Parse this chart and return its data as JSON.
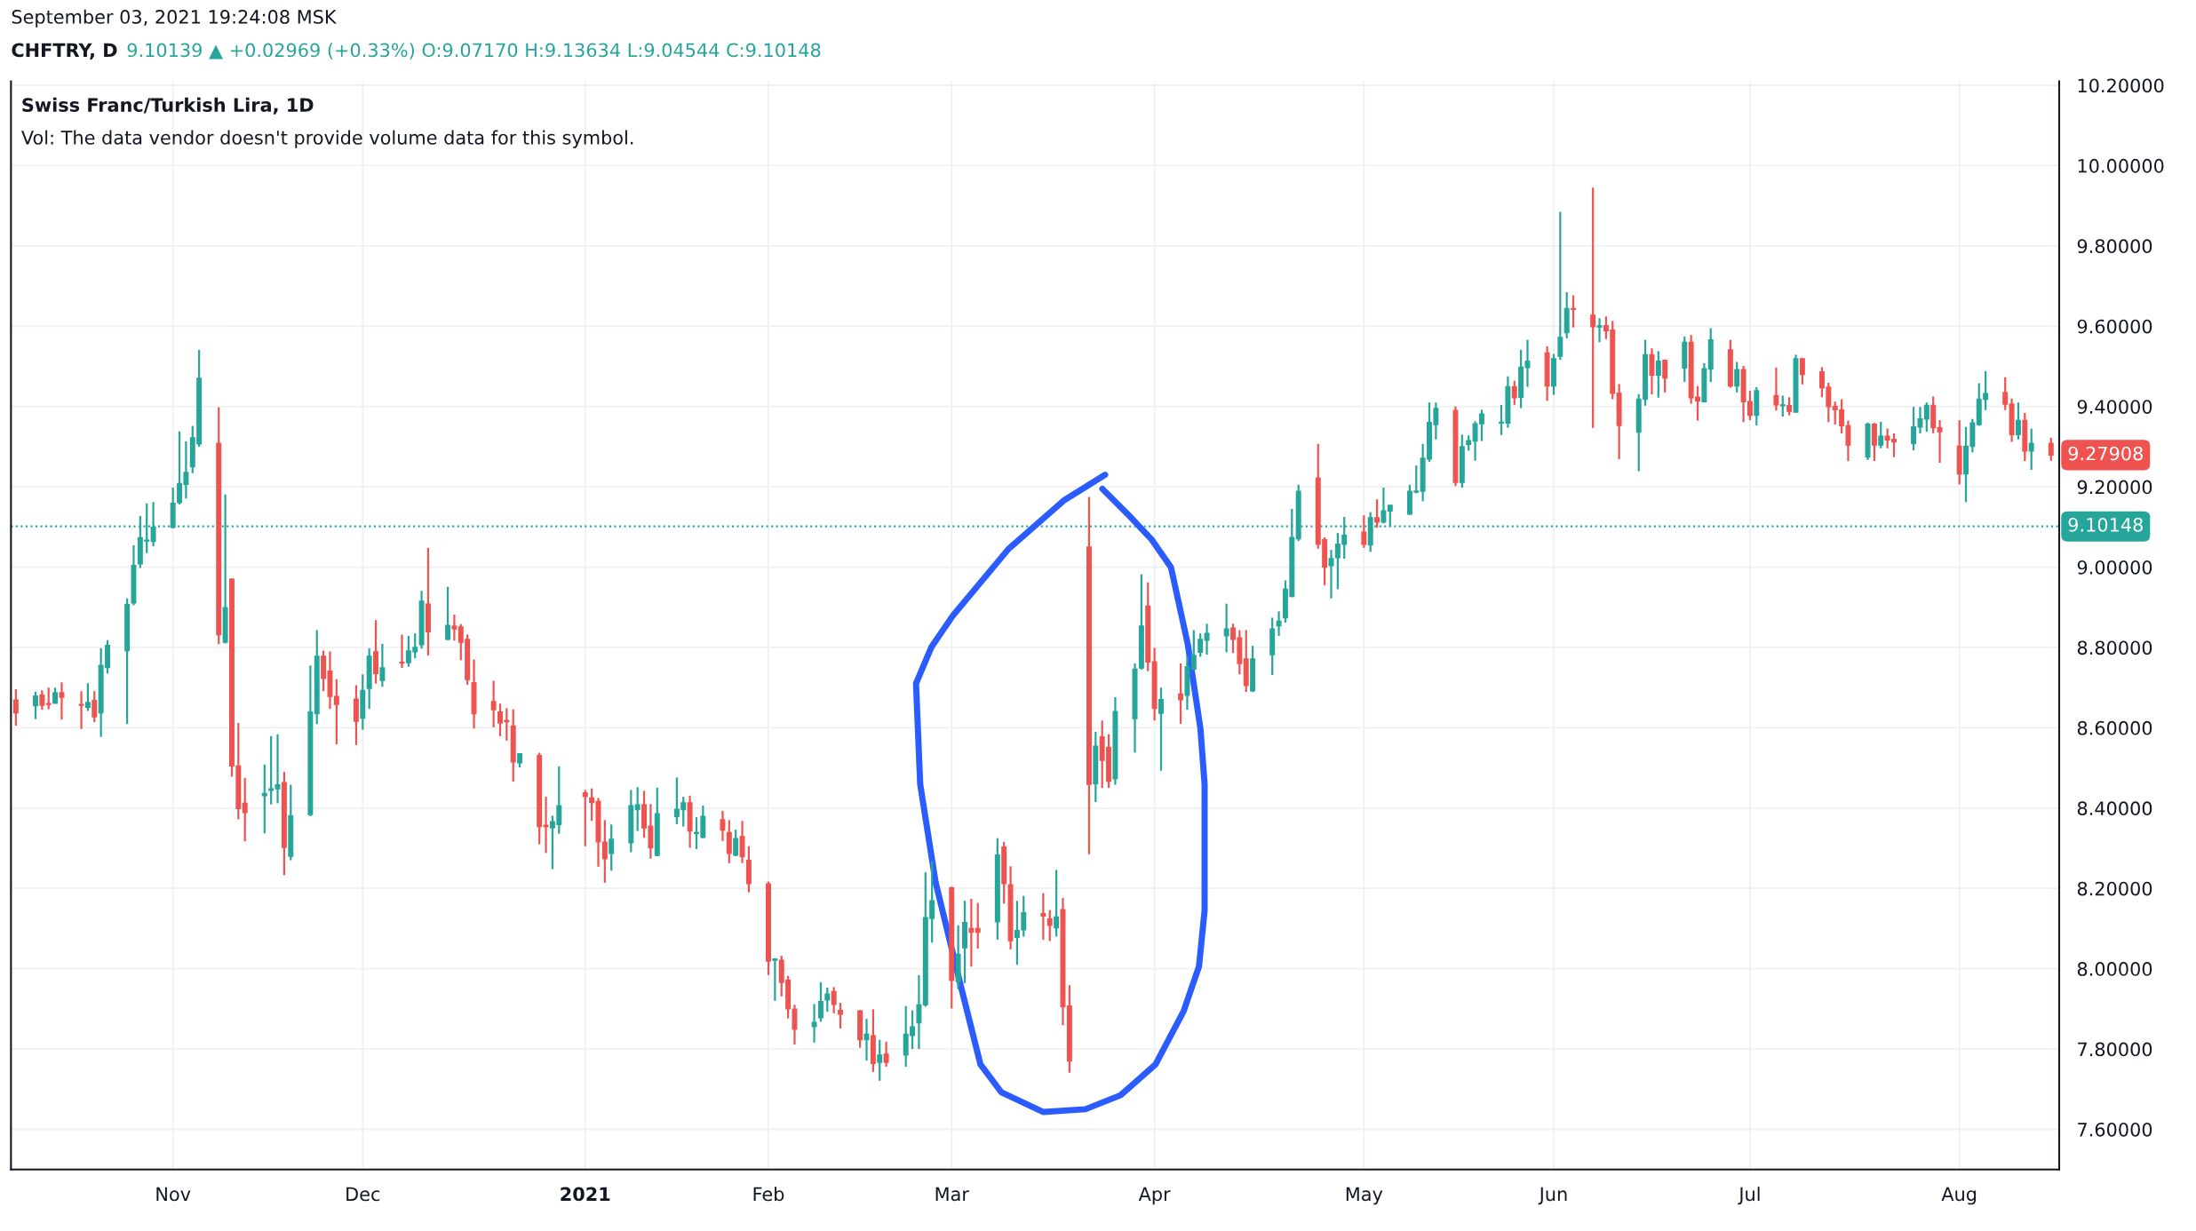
{
  "chart_data": {
    "type": "candlestick",
    "title": "Swiss Franc/Turkish Lira, 1D",
    "subtitle": "Vol: The data vendor doesn't provide volume data for this symbol.",
    "annotations": [
      "September 03, 2021 19:24:08 MSK",
      "CHFTRY, D",
      "9.10139 ▲ +0.02969 (+0.33%) O:9.07170 H:9.13634 L:9.04544 C:9.10148",
      {
        "text": "9.27908",
        "x": "2021-08-16",
        "y": 9.27908
      }
    ],
    "colors": [
      "#ef5350",
      "#26a69a",
      "#ef5350",
      "#ef5350",
      "#26a69a",
      "#ef5350",
      "#ef5350",
      "#26a69a",
      "#ef5350",
      "#26a69a",
      "#26a69a",
      "#26a69a",
      "#26a69a",
      "#26a69a",
      "#26a69a",
      "#26a69a",
      "#26a69a",
      "#26a69a",
      "#26a69a",
      "#26a69a",
      "#26a69a",
      "#ef5350",
      "#26a69a",
      "#ef5350",
      "#ef5350",
      "#ef5350",
      "#26a69a",
      "#26a69a",
      "#26a69a",
      "#ef5350",
      "#26a69a",
      "#26a69a",
      "#26a69a",
      "#ef5350",
      "#ef5350",
      "#ef5350",
      "#ef5350",
      "#26a69a",
      "#26a69a",
      "#ef5350",
      "#26a69a",
      "#ef5350",
      "#26a69a",
      "#26a69a",
      "#26a69a",
      "#ef5350",
      "#26a69a",
      "#ef5350",
      "#ef5350",
      "#ef5350",
      "#ef5350",
      "#ef5350",
      "#ef5350",
      "#ef5350",
      "#ef5350",
      "#26a69a",
      "#ef5350",
      "#ef5350",
      "#26a69a",
      "#26a69a",
      "#ef5350",
      "#ef5350",
      "#ef5350",
      "#ef5350",
      "#26a69a",
      "#26a69a",
      "#26a69a",
      "#ef5350",
      "#ef5350",
      "#26a69a",
      "#26a69a",
      "#26a69a",
      "#ef5350",
      "#26a69a",
      "#26a69a",
      "#ef5350",
      "#ef5350",
      "#26a69a",
      "#ef5350",
      "#ef5350",
      "#ef5350",
      "#26a69a",
      "#ef5350",
      "#ef5350",
      "#ef5350",
      "#26a69a",
      "#26a69a",
      "#26a69a",
      "#ef5350",
      "#ef5350",
      "#ef5350",
      "#26a69a",
      "#ef5350",
      "#26a69a",
      "#ef5350",
      "#26a69a",
      "#26a69a",
      "#26a69a",
      "#26a69a",
      "#26a69a",
      "#ef5350",
      "#26a69a",
      "#26a69a",
      "#ef5350",
      "#ef5350",
      "#26a69a",
      "#ef5350",
      "#ef5350",
      "#26a69a",
      "#26a69a",
      "#ef5350",
      "#ef5350",
      "#26a69a",
      "#ef5350",
      "#ef5350",
      "#ef5350",
      "#26a69a",
      "#ef5350",
      "#ef5350",
      "#26a69a",
      "#26a69a",
      "#26a69a",
      "#ef5350",
      "#ef5350",
      "#26a69a",
      "#ef5350",
      "#26a69a",
      "#26a69a",
      "#26a69a",
      "#26a69a",
      "#26a69a",
      "#ef5350",
      "#ef5350",
      "#ef5350",
      "#26a69a",
      "#26a69a",
      "#26a69a",
      "#26a69a",
      "#26a69a",
      "#26a69a",
      "#ef5350",
      "#ef5350",
      "#26a69a",
      "#26a69a",
      "#26a69a",
      "#ef5350",
      "#26a69a",
      "#ef5350",
      "#26a69a",
      "#26a69a",
      "#26a69a",
      "#26a69a",
      "#26a69a",
      "#26a69a",
      "#26a69a",
      "#ef5350",
      "#26a69a",
      "#26a69a",
      "#26a69a",
      "#26a69a",
      "#26a69a",
      "#26a69a",
      "#ef5350",
      "#26a69a",
      "#26a69a",
      "#ef5350",
      "#26a69a",
      "#26a69a",
      "#26a69a",
      "#ef5350",
      "#ef5350",
      "#26a69a",
      "#ef5350",
      "#ef5350",
      "#ef5350",
      "#26a69a",
      "#26a69a",
      "#ef5350",
      "#26a69a",
      "#ef5350",
      "#26a69a",
      "#ef5350",
      "#ef5350",
      "#26a69a",
      "#26a69a",
      "#ef5350",
      "#26a69a",
      "#ef5350",
      "#ef5350",
      "#26a69a",
      "#ef5350",
      "#26a69a",
      "#ef5350",
      "#26a69a",
      "#ef5350",
      "#ef5350",
      "#ef5350",
      "#ef5350",
      "#ef5350",
      "#ef5350",
      "#26a69a",
      "#ef5350",
      "#26a69a",
      "#ef5350",
      "#ef5350",
      "#26a69a",
      "#26a69a",
      "#26a69a",
      "#ef5350",
      "#ef5350",
      "#ef5350",
      "#26a69a",
      "#26a69a",
      "#26a69a",
      "#26a69a",
      "#ef5350",
      "#ef5350",
      "#26a69a",
      "#ef5350",
      "#26a69a",
      "#ef5350"
    ],
    "x": [
      "2020-10-09",
      "2020-10-12",
      "2020-10-13",
      "2020-10-14",
      "2020-10-15",
      "2020-10-16",
      "2020-10-19",
      "2020-10-20",
      "2020-10-21",
      "2020-10-22",
      "2020-10-23",
      "2020-10-26",
      "2020-10-27",
      "2020-10-28",
      "2020-10-29",
      "2020-10-30",
      "2020-11-02",
      "2020-11-03",
      "2020-11-04",
      "2020-11-05",
      "2020-11-06",
      "2020-11-09",
      "2020-11-10",
      "2020-11-11",
      "2020-11-12",
      "2020-11-13",
      "2020-11-16",
      "2020-11-17",
      "2020-11-18",
      "2020-11-19",
      "2020-11-20",
      "2020-11-23",
      "2020-11-24",
      "2020-11-25",
      "2020-11-26",
      "2020-11-27",
      "2020-11-30",
      "2020-12-01",
      "2020-12-02",
      "2020-12-03",
      "2020-12-04",
      "2020-12-07",
      "2020-12-08",
      "2020-12-09",
      "2020-12-10",
      "2020-12-11",
      "2020-12-14",
      "2020-12-15",
      "2020-12-16",
      "2020-12-17",
      "2020-12-18",
      "2020-12-21",
      "2020-12-22",
      "2020-12-23",
      "2020-12-24",
      "2020-12-25",
      "2020-12-28",
      "2020-12-29",
      "2020-12-30",
      "2020-12-31",
      "2021-01-04",
      "2021-01-05",
      "2021-01-06",
      "2021-01-07",
      "2021-01-08",
      "2021-01-11",
      "2021-01-12",
      "2021-01-13",
      "2021-01-14",
      "2021-01-15",
      "2021-01-18",
      "2021-01-19",
      "2021-01-20",
      "2021-01-21",
      "2021-01-22",
      "2021-01-25",
      "2021-01-26",
      "2021-01-27",
      "2021-01-28",
      "2021-01-29",
      "2021-02-01",
      "2021-02-02",
      "2021-02-03",
      "2021-02-04",
      "2021-02-05",
      "2021-02-08",
      "2021-02-09",
      "2021-02-10",
      "2021-02-11",
      "2021-02-12",
      "2021-02-15",
      "2021-02-16",
      "2021-02-17",
      "2021-02-18",
      "2021-02-19",
      "2021-02-22",
      "2021-02-23",
      "2021-02-24",
      "2021-02-25",
      "2021-02-26",
      "2021-03-01",
      "2021-03-02",
      "2021-03-03",
      "2021-03-04",
      "2021-03-05",
      "2021-03-08",
      "2021-03-09",
      "2021-03-10",
      "2021-03-11",
      "2021-03-12",
      "2021-03-15",
      "2021-03-16",
      "2021-03-17",
      "2021-03-18",
      "2021-03-19",
      "2021-03-22",
      "2021-03-23",
      "2021-03-24",
      "2021-03-25",
      "2021-03-26",
      "2021-03-29",
      "2021-03-30",
      "2021-03-31",
      "2021-04-01",
      "2021-04-02",
      "2021-04-05",
      "2021-04-06",
      "2021-04-07",
      "2021-04-08",
      "2021-04-09",
      "2021-04-12",
      "2021-04-13",
      "2021-04-14",
      "2021-04-15",
      "2021-04-16",
      "2021-04-19",
      "2021-04-20",
      "2021-04-21",
      "2021-04-22",
      "2021-04-23",
      "2021-04-26",
      "2021-04-27",
      "2021-04-28",
      "2021-04-29",
      "2021-04-30",
      "2021-05-03",
      "2021-05-04",
      "2021-05-05",
      "2021-05-06",
      "2021-05-07",
      "2021-05-10",
      "2021-05-11",
      "2021-05-12",
      "2021-05-13",
      "2021-05-14",
      "2021-05-17",
      "2021-05-18",
      "2021-05-19",
      "2021-05-20",
      "2021-05-21",
      "2021-05-24",
      "2021-05-25",
      "2021-05-26",
      "2021-05-27",
      "2021-05-28",
      "2021-05-31",
      "2021-06-01",
      "2021-06-02",
      "2021-06-03",
      "2021-06-04",
      "2021-06-07",
      "2021-06-08",
      "2021-06-09",
      "2021-06-10",
      "2021-06-11",
      "2021-06-14",
      "2021-06-15",
      "2021-06-16",
      "2021-06-17",
      "2021-06-18",
      "2021-06-21",
      "2021-06-22",
      "2021-06-23",
      "2021-06-24",
      "2021-06-25",
      "2021-06-28",
      "2021-06-29",
      "2021-06-30",
      "2021-07-01",
      "2021-07-02",
      "2021-07-05",
      "2021-07-06",
      "2021-07-07",
      "2021-07-08",
      "2021-07-09",
      "2021-07-12",
      "2021-07-13",
      "2021-07-14",
      "2021-07-15",
      "2021-07-16",
      "2021-07-19",
      "2021-07-20",
      "2021-07-21",
      "2021-07-22",
      "2021-07-23",
      "2021-07-26",
      "2021-07-27",
      "2021-07-28",
      "2021-07-29",
      "2021-07-30",
      "2021-08-02",
      "2021-08-03",
      "2021-08-04",
      "2021-08-05",
      "2021-08-06",
      "2021-08-09",
      "2021-08-10",
      "2021-08-11",
      "2021-08-12",
      "2021-08-13",
      "2021-08-16"
    ],
    "ohlc": [
      [
        8.669,
        8.696,
        8.605,
        8.637
      ],
      [
        8.655,
        8.69,
        8.622,
        8.679
      ],
      [
        8.681,
        8.693,
        8.645,
        8.656
      ],
      [
        8.66,
        8.7,
        8.646,
        8.658
      ],
      [
        8.661,
        8.7,
        8.661,
        8.687
      ],
      [
        8.687,
        8.713,
        8.62,
        8.676
      ],
      [
        8.658,
        8.691,
        8.597,
        8.656
      ],
      [
        8.651,
        8.711,
        8.642,
        8.663
      ],
      [
        8.668,
        8.691,
        8.614,
        8.627
      ],
      [
        8.637,
        8.798,
        8.577,
        8.755
      ],
      [
        8.75,
        8.818,
        8.735,
        8.805
      ],
      [
        8.792,
        8.922,
        8.609,
        8.907
      ],
      [
        8.911,
        9.054,
        8.905,
        9.004
      ],
      [
        9.008,
        9.127,
        8.998,
        9.073
      ],
      [
        9.065,
        9.159,
        9.035,
        9.067
      ],
      [
        9.064,
        9.162,
        9.052,
        9.099
      ],
      [
        9.099,
        9.198,
        9.097,
        9.159
      ],
      [
        9.161,
        9.338,
        9.156,
        9.208
      ],
      [
        9.206,
        9.313,
        9.171,
        9.236
      ],
      [
        9.25,
        9.352,
        9.234,
        9.322
      ],
      [
        9.307,
        9.541,
        9.3,
        9.47
      ],
      [
        9.308,
        9.398,
        8.808,
        8.832
      ],
      [
        8.813,
        9.181,
        8.81,
        8.899
      ],
      [
        8.97,
        8.972,
        8.478,
        8.505
      ],
      [
        8.505,
        8.612,
        8.372,
        8.399
      ],
      [
        8.412,
        8.475,
        8.317,
        8.389
      ],
      [
        8.431,
        8.508,
        8.337,
        8.436
      ],
      [
        8.444,
        8.579,
        8.409,
        8.448
      ],
      [
        8.448,
        8.584,
        8.412,
        8.458
      ],
      [
        8.463,
        8.49,
        8.233,
        8.302
      ],
      [
        8.28,
        8.458,
        8.27,
        8.381
      ],
      [
        8.384,
        8.755,
        8.38,
        8.639
      ],
      [
        8.635,
        8.843,
        8.609,
        8.778
      ],
      [
        8.778,
        8.792,
        8.691,
        8.723
      ],
      [
        8.741,
        8.79,
        8.647,
        8.678
      ],
      [
        8.678,
        8.721,
        8.559,
        8.658
      ],
      [
        8.671,
        8.706,
        8.557,
        8.616
      ],
      [
        8.624,
        8.733,
        8.595,
        8.693
      ],
      [
        8.698,
        8.798,
        8.647,
        8.778
      ],
      [
        8.789,
        8.868,
        8.71,
        8.735
      ],
      [
        8.718,
        8.809,
        8.702,
        8.749
      ],
      [
        8.763,
        8.832,
        8.749,
        8.761
      ],
      [
        8.762,
        8.829,
        8.752,
        8.791
      ],
      [
        8.789,
        8.835,
        8.773,
        8.8
      ],
      [
        8.807,
        8.941,
        8.797,
        8.915
      ],
      [
        8.908,
        9.048,
        8.78,
        8.839
      ],
      [
        8.82,
        8.951,
        8.818,
        8.855
      ],
      [
        8.853,
        8.882,
        8.817,
        8.846
      ],
      [
        8.851,
        8.858,
        8.768,
        8.813
      ],
      [
        8.82,
        8.832,
        8.707,
        8.72
      ],
      [
        8.712,
        8.77,
        8.598,
        8.635
      ],
      [
        8.665,
        8.717,
        8.601,
        8.645
      ],
      [
        8.639,
        8.66,
        8.579,
        8.612
      ],
      [
        8.618,
        8.649,
        8.568,
        8.615
      ],
      [
        8.604,
        8.646,
        8.466,
        8.515
      ],
      [
        8.513,
        8.535,
        8.501,
        8.535
      ],
      [
        8.531,
        8.538,
        8.31,
        8.354
      ],
      [
        8.357,
        8.428,
        8.288,
        8.354
      ],
      [
        8.351,
        8.381,
        8.248,
        8.366
      ],
      [
        8.359,
        8.504,
        8.336,
        8.406
      ],
      [
        8.438,
        8.445,
        8.305,
        8.429
      ],
      [
        8.425,
        8.449,
        8.368,
        8.414
      ],
      [
        8.416,
        8.425,
        8.254,
        8.316
      ],
      [
        8.315,
        8.37,
        8.214,
        8.274
      ],
      [
        8.287,
        8.359,
        8.244,
        8.322
      ],
      [
        8.314,
        8.445,
        8.29,
        8.406
      ],
      [
        8.396,
        8.452,
        8.343,
        8.408
      ],
      [
        8.408,
        8.443,
        8.326,
        8.351
      ],
      [
        8.355,
        8.41,
        8.274,
        8.301
      ],
      [
        8.282,
        8.451,
        8.28,
        8.386
      ],
      [
        8.379,
        8.476,
        8.36,
        8.397
      ],
      [
        8.396,
        8.428,
        8.354,
        8.413
      ],
      [
        8.413,
        8.431,
        8.301,
        8.343
      ],
      [
        8.337,
        8.377,
        8.298,
        8.339
      ],
      [
        8.327,
        8.406,
        8.325,
        8.379
      ],
      [
        8.371,
        8.393,
        8.318,
        8.345
      ],
      [
        8.339,
        8.37,
        8.263,
        8.287
      ],
      [
        8.283,
        8.346,
        8.28,
        8.324
      ],
      [
        8.329,
        8.368,
        8.263,
        8.279
      ],
      [
        8.27,
        8.305,
        8.19,
        8.212
      ],
      [
        8.211,
        8.217,
        7.984,
        8.019
      ],
      [
        8.021,
        8.024,
        7.92,
        8.024
      ],
      [
        8.021,
        8.032,
        7.931,
        7.966
      ],
      [
        7.971,
        7.982,
        7.876,
        7.9
      ],
      [
        7.899,
        7.91,
        7.811,
        7.849
      ],
      [
        7.856,
        7.912,
        7.816,
        7.866
      ],
      [
        7.878,
        7.966,
        7.868,
        7.918
      ],
      [
        7.922,
        7.953,
        7.893,
        7.937
      ],
      [
        7.943,
        7.954,
        7.889,
        7.911
      ],
      [
        7.896,
        7.915,
        7.851,
        7.887
      ],
      [
        7.895,
        7.897,
        7.803,
        7.823
      ],
      [
        7.823,
        7.875,
        7.771,
        7.837
      ],
      [
        7.833,
        7.899,
        7.743,
        7.764
      ],
      [
        7.767,
        7.823,
        7.721,
        7.785
      ],
      [
        7.787,
        7.818,
        7.756,
        7.767
      ],
      [
        7.785,
        7.907,
        7.756,
        7.837
      ],
      [
        7.834,
        7.896,
        7.8,
        7.855
      ],
      [
        7.865,
        7.984,
        7.8,
        7.91
      ],
      [
        7.91,
        8.24,
        7.905,
        8.127
      ],
      [
        8.125,
        8.268,
        8.065,
        8.169
      ],
      [
        8.201,
        8.204,
        7.901,
        7.971
      ],
      [
        7.968,
        8.108,
        7.949,
        8.036
      ],
      [
        8.052,
        8.169,
        7.964,
        8.115
      ],
      [
        8.1,
        8.174,
        8.005,
        8.091
      ],
      [
        8.1,
        8.164,
        8.05,
        8.091
      ],
      [
        8.117,
        8.325,
        8.072,
        8.283
      ],
      [
        8.303,
        8.316,
        8.162,
        8.212
      ],
      [
        8.209,
        8.255,
        8.048,
        8.07
      ],
      [
        8.078,
        8.169,
        8.01,
        8.095
      ],
      [
        8.097,
        8.181,
        8.08,
        8.139
      ],
      [
        8.137,
        8.188,
        8.072,
        8.131
      ],
      [
        8.124,
        8.146,
        8.069,
        8.108
      ],
      [
        8.102,
        8.246,
        8.08,
        8.129
      ],
      [
        8.147,
        8.176,
        7.859,
        7.905
      ],
      [
        7.907,
        7.959,
        7.741,
        7.77
      ],
      [
        9.05,
        9.175,
        8.285,
        8.459
      ],
      [
        8.461,
        8.59,
        8.415,
        8.554
      ],
      [
        8.577,
        8.618,
        8.45,
        8.519
      ],
      [
        8.551,
        8.584,
        8.45,
        8.467
      ],
      [
        8.473,
        8.676,
        8.458,
        8.64
      ],
      [
        8.623,
        8.76,
        8.538,
        8.746
      ],
      [
        8.749,
        8.982,
        8.745,
        8.853
      ],
      [
        8.903,
        8.962,
        8.741,
        8.764
      ],
      [
        8.764,
        8.799,
        8.618,
        8.648
      ],
      [
        8.636,
        8.7,
        8.493,
        8.67
      ],
      [
        8.684,
        8.76,
        8.61,
        8.67
      ],
      [
        8.681,
        8.777,
        8.645,
        8.752
      ],
      [
        8.746,
        8.843,
        8.744,
        8.78
      ],
      [
        8.788,
        8.835,
        8.777,
        8.82
      ],
      [
        8.818,
        8.859,
        8.782,
        8.835
      ],
      [
        8.829,
        8.909,
        8.788,
        8.846
      ],
      [
        8.848,
        8.859,
        8.786,
        8.82
      ],
      [
        8.824,
        8.843,
        8.733,
        8.76
      ],
      [
        8.771,
        8.843,
        8.689,
        8.705
      ],
      [
        8.692,
        8.804,
        8.689,
        8.771
      ],
      [
        8.782,
        8.874,
        8.731,
        8.846
      ],
      [
        8.854,
        8.89,
        8.829,
        8.865
      ],
      [
        8.874,
        8.967,
        8.862,
        8.945
      ],
      [
        8.927,
        9.145,
        8.925,
        9.074
      ],
      [
        9.071,
        9.205,
        9.065,
        9.189
      ],
      [
        9.222,
        9.307,
        9.046,
        9.057
      ],
      [
        9.068,
        9.074,
        8.955,
        9.0
      ],
      [
        9.004,
        9.043,
        8.922,
        9.021
      ],
      [
        9.024,
        9.085,
        8.945,
        9.057
      ],
      [
        9.057,
        9.125,
        9.021,
        9.079
      ],
      [
        9.087,
        9.129,
        9.048,
        9.057
      ],
      [
        9.055,
        9.137,
        9.038,
        9.123
      ],
      [
        9.123,
        9.169,
        9.098,
        9.112
      ],
      [
        9.112,
        9.198,
        9.109,
        9.14
      ],
      [
        9.14,
        9.154,
        9.101,
        9.154
      ],
      [
        9.132,
        9.205,
        9.13,
        9.189
      ],
      [
        9.187,
        9.253,
        9.184,
        9.189
      ],
      [
        9.189,
        9.307,
        9.164,
        9.271
      ],
      [
        9.269,
        9.41,
        9.262,
        9.36
      ],
      [
        9.355,
        9.41,
        9.318,
        9.395
      ],
      [
        9.39,
        9.4,
        9.202,
        9.211
      ],
      [
        9.211,
        9.33,
        9.198,
        9.3
      ],
      [
        9.306,
        9.328,
        9.29,
        9.315
      ],
      [
        9.314,
        9.363,
        9.265,
        9.357
      ],
      [
        9.357,
        9.392,
        9.314,
        9.381
      ],
      [
        9.359,
        9.404,
        9.329,
        9.361
      ],
      [
        9.359,
        9.475,
        9.347,
        9.449
      ],
      [
        9.449,
        9.464,
        9.404,
        9.422
      ],
      [
        9.423,
        9.541,
        9.396,
        9.498
      ],
      [
        9.497,
        9.566,
        9.449,
        9.513
      ],
      [
        9.533,
        9.55,
        9.414,
        9.451
      ],
      [
        9.451,
        9.531,
        9.429,
        9.519
      ],
      [
        9.525,
        9.885,
        9.516,
        9.572
      ],
      [
        9.584,
        9.685,
        9.57,
        9.644
      ],
      [
        9.644,
        9.677,
        9.597,
        9.642
      ],
      [
        9.627,
        9.945,
        9.347,
        9.599
      ],
      [
        9.598,
        9.62,
        9.56,
        9.601
      ],
      [
        9.601,
        9.624,
        9.568,
        9.589
      ],
      [
        9.59,
        9.613,
        9.418,
        9.433
      ],
      [
        9.433,
        9.456,
        9.269,
        9.353
      ],
      [
        9.336,
        9.431,
        9.239,
        9.418
      ],
      [
        9.418,
        9.566,
        9.402,
        9.529
      ],
      [
        9.529,
        9.545,
        9.43,
        9.478
      ],
      [
        9.478,
        9.538,
        9.422,
        9.513
      ],
      [
        9.515,
        9.517,
        9.435,
        9.471
      ],
      [
        9.496,
        9.574,
        9.461,
        9.56
      ],
      [
        9.56,
        9.578,
        9.407,
        9.422
      ],
      [
        9.423,
        9.451,
        9.365,
        9.414
      ],
      [
        9.412,
        9.508,
        9.41,
        9.494
      ],
      [
        9.493,
        9.595,
        9.461,
        9.566
      ],
      [
        9.541,
        9.566,
        9.447,
        9.451
      ],
      [
        9.451,
        9.511,
        9.435,
        9.492
      ],
      [
        9.492,
        9.501,
        9.361,
        9.412
      ],
      [
        9.412,
        9.439,
        9.366,
        9.378
      ],
      [
        9.378,
        9.448,
        9.353,
        9.439
      ],
      [
        9.427,
        9.497,
        9.39,
        9.404
      ],
      [
        9.402,
        9.427,
        9.375,
        9.404
      ],
      [
        9.402,
        9.423,
        9.378,
        9.388
      ],
      [
        9.386,
        9.529,
        9.385,
        9.519
      ],
      [
        9.519,
        9.52,
        9.455,
        9.48
      ],
      [
        9.486,
        9.498,
        9.423,
        9.447
      ],
      [
        9.448,
        9.459,
        9.361,
        9.4
      ],
      [
        9.4,
        9.412,
        9.355,
        9.392
      ],
      [
        9.391,
        9.418,
        9.333,
        9.352
      ],
      [
        9.352,
        9.365,
        9.264,
        9.304
      ],
      [
        9.274,
        9.36,
        9.267,
        9.356
      ],
      [
        9.356,
        9.359,
        9.264,
        9.304
      ],
      [
        9.304,
        9.362,
        9.296,
        9.326
      ],
      [
        9.326,
        9.345,
        9.296,
        9.317
      ],
      [
        9.318,
        9.333,
        9.274,
        9.312
      ],
      [
        9.308,
        9.399,
        9.291,
        9.349
      ],
      [
        9.349,
        9.399,
        9.333,
        9.369
      ],
      [
        9.369,
        9.41,
        9.337,
        9.403
      ],
      [
        9.403,
        9.425,
        9.333,
        9.347
      ],
      [
        9.347,
        9.366,
        9.26,
        9.337
      ],
      [
        9.301,
        9.366,
        9.206,
        9.232
      ],
      [
        9.232,
        9.349,
        9.162,
        9.301
      ],
      [
        9.301,
        9.369,
        9.286,
        9.359
      ],
      [
        9.355,
        9.458,
        9.352,
        9.418
      ],
      [
        9.418,
        9.488,
        9.391,
        9.432
      ],
      [
        9.435,
        9.473,
        9.391,
        9.406
      ],
      [
        9.406,
        9.42,
        9.312,
        9.33
      ],
      [
        9.33,
        9.41,
        9.318,
        9.365
      ],
      [
        9.365,
        9.384,
        9.264,
        9.289
      ],
      [
        9.289,
        9.345,
        9.242,
        9.308
      ],
      [
        9.308,
        9.322,
        9.265,
        9.27908
      ]
    ],
    "ref_lines": [
      {
        "axis": "y",
        "value": 9.10148,
        "label": "9.10148",
        "color": "#26a69a",
        "line_style": "dotted"
      }
    ],
    "xlim": [
      "2020-10-08T06:00",
      "2021-08-17T06:00"
    ],
    "xticks": [
      {
        "value": "2020-11-02",
        "label": "Nov"
      },
      {
        "value": "2020-12-01",
        "label": "Dec"
      },
      {
        "value": "2021-01-04",
        "label": "2021"
      },
      {
        "value": "2021-02-01",
        "label": "Feb"
      },
      {
        "value": "2021-03-01",
        "label": "Mar"
      },
      {
        "value": "2021-04-01",
        "label": "Apr"
      },
      {
        "value": "2021-05-03",
        "label": "May"
      },
      {
        "value": "2021-06-01",
        "label": "Jun"
      },
      {
        "value": "2021-07-01",
        "label": "Jul"
      },
      {
        "value": "2021-08-02",
        "label": "Aug"
      }
    ],
    "ylim": [
      7.5,
      10.21
    ],
    "yticks": [
      {
        "value": 7.6,
        "label": "7.60000"
      },
      {
        "value": 7.8,
        "label": "7.80000"
      },
      {
        "value": 8.0,
        "label": "8.00000"
      },
      {
        "value": 8.2,
        "label": "8.20000"
      },
      {
        "value": 8.4,
        "label": "8.40000"
      },
      {
        "value": 8.6,
        "label": "8.60000"
      },
      {
        "value": 8.8,
        "label": "8.80000"
      },
      {
        "value": 9.0,
        "label": "9.00000"
      },
      {
        "value": 9.2,
        "label": "9.20000"
      },
      {
        "value": 9.4,
        "label": "9.40000"
      },
      {
        "value": 9.6,
        "label": "9.60000"
      },
      {
        "value": 9.8,
        "label": "9.80000"
      },
      {
        "value": 10.0,
        "label": "10.00000"
      },
      {
        "value": 10.2,
        "label": "10.20000"
      }
    ],
    "grid": true
  }
}
